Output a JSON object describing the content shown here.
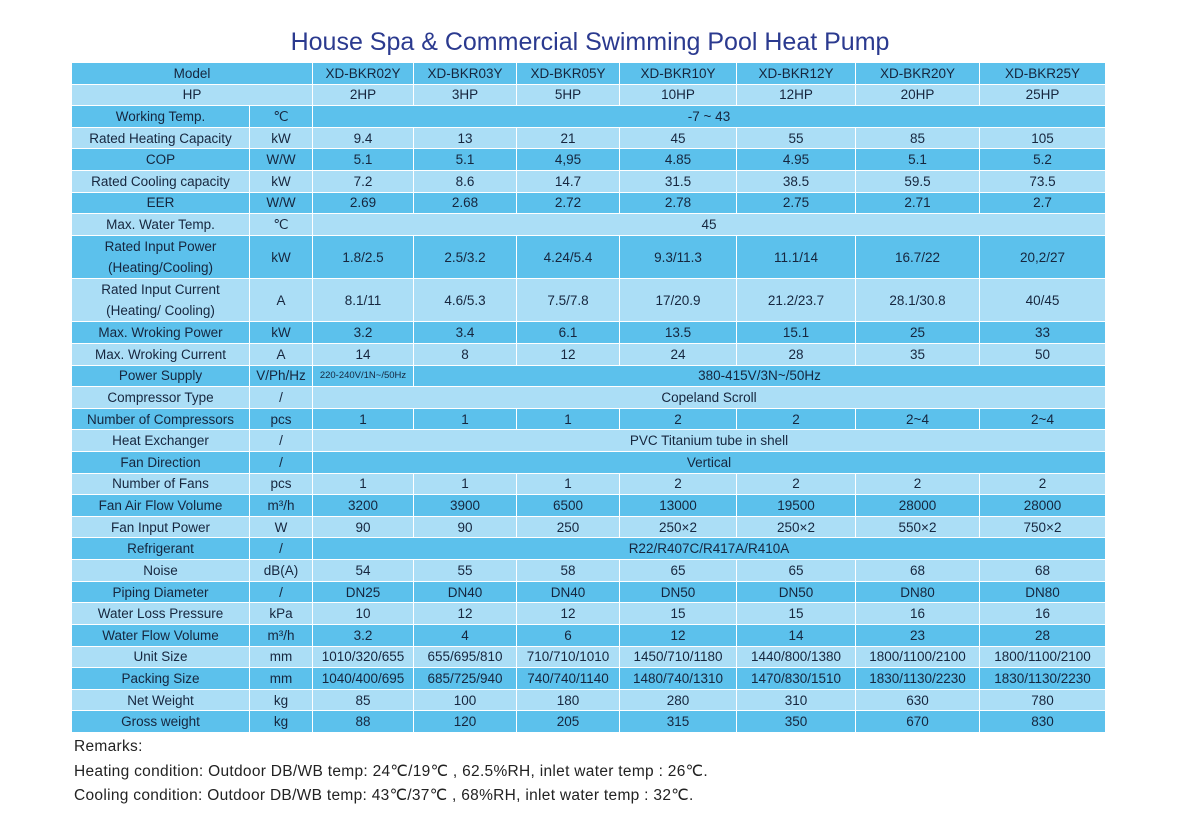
{
  "header": {
    "title": "House Spa & Commercial Swimming Pool Heat Pump"
  },
  "table": {
    "rows": [
      {
        "label": "Model",
        "values": [
          "XD-BKR02Y",
          "XD-BKR03Y",
          "XD-BKR05Y",
          "XD-BKR10Y",
          "XD-BKR12Y",
          "XD-BKR20Y",
          "XD-BKR25Y"
        ]
      },
      {
        "label": "HP",
        "values": [
          "2HP",
          "3HP",
          "5HP",
          "10HP",
          "12HP",
          "20HP",
          "25HP"
        ]
      },
      {
        "label": "Working Temp.",
        "unit": "℃",
        "values": [
          "-7 ~ 43"
        ]
      },
      {
        "label": "Rated Heating Capacity",
        "unit": "kW",
        "values": [
          "9.4",
          "13",
          "21",
          "45",
          "55",
          "85",
          "105"
        ]
      },
      {
        "label": "COP",
        "unit": "W/W",
        "values": [
          "5.1",
          "5.1",
          "4,95",
          "4.85",
          "4.95",
          "5.1",
          "5.2"
        ]
      },
      {
        "label": "Rated Cooling capacity",
        "unit": "kW",
        "values": [
          "7.2",
          "8.6",
          "14.7",
          "31.5",
          "38.5",
          "59.5",
          "73.5"
        ]
      },
      {
        "label": "EER",
        "unit": "W/W",
        "values": [
          "2.69",
          "2.68",
          "2.72",
          "2.78",
          "2.75",
          "2.71",
          "2.7"
        ]
      },
      {
        "label": "Max. Water Temp.",
        "unit": "℃",
        "values": [
          "45"
        ]
      },
      {
        "label": [
          "Rated Input Power",
          "(Heating/Cooling)"
        ],
        "unit": "kW",
        "values": [
          "1.8/2.5",
          "2.5/3.2",
          "4.24/5.4",
          "9.3/11.3",
          "11.1/14",
          "16.7/22",
          "20,2/27"
        ]
      },
      {
        "label": [
          "Rated Input Current",
          "(Heating/ Cooling)"
        ],
        "unit": "A",
        "values": [
          "8.1/11",
          "4.6/5.3",
          "7.5/7.8",
          "17/20.9",
          "21.2/23.7",
          "28.1/30.8",
          "40/45"
        ]
      },
      {
        "label": "Max. Wroking Power",
        "unit": "kW",
        "values": [
          "3.2",
          "3.4",
          "6.1",
          "13.5",
          "15.1",
          "25",
          "33"
        ]
      },
      {
        "label": "Max. Wroking Current",
        "unit": "A",
        "values": [
          "14",
          "8",
          "12",
          "24",
          "28",
          "35",
          "50"
        ]
      },
      {
        "label": "Power Supply",
        "unit": "V/Ph/Hz",
        "values": [
          "220-240V/1N~/50Hz",
          "380-415V/3N~/50Hz"
        ]
      },
      {
        "label": "Compressor Type",
        "unit": "/",
        "values": [
          "Copeland Scroll"
        ]
      },
      {
        "label": "Number of Compressors",
        "unit": "pcs",
        "values": [
          "1",
          "1",
          "1",
          "2",
          "2",
          "2~4",
          "2~4"
        ]
      },
      {
        "label": "Heat Exchanger",
        "unit": "/",
        "values": [
          "PVC  Titanium tube in shell"
        ]
      },
      {
        "label": "Fan Direction",
        "unit": "/",
        "values": [
          "Vertical"
        ]
      },
      {
        "label": "Number of Fans",
        "unit": "pcs",
        "values": [
          "1",
          "1",
          "1",
          "2",
          "2",
          "2",
          "2"
        ]
      },
      {
        "label": "Fan Air Flow Volume",
        "unit": "m³/h",
        "values": [
          "3200",
          "3900",
          "6500",
          "13000",
          "19500",
          "28000",
          "28000"
        ]
      },
      {
        "label": "Fan Input Power",
        "unit": "W",
        "values": [
          "90",
          "90",
          "250",
          "250×2",
          "250×2",
          "550×2",
          "750×2"
        ]
      },
      {
        "label": "Refrigerant",
        "unit": "/",
        "values": [
          "R22/R407C/R417A/R410A"
        ]
      },
      {
        "label": "Noise",
        "unit": "dB(A)",
        "values": [
          "54",
          "55",
          "58",
          "65",
          "65",
          "68",
          "68"
        ]
      },
      {
        "label": "Piping Diameter",
        "unit": "/",
        "values": [
          "DN25",
          "DN40",
          "DN40",
          "DN50",
          "DN50",
          "DN80",
          "DN80"
        ]
      },
      {
        "label": "Water Loss Pressure",
        "unit": "kPa",
        "values": [
          "10",
          "12",
          "12",
          "15",
          "15",
          "16",
          "16"
        ]
      },
      {
        "label": "Water Flow Volume",
        "unit": "m³/h",
        "values": [
          "3.2",
          "4",
          "6",
          "12",
          "14",
          "23",
          "28"
        ]
      },
      {
        "label": "Unit Size",
        "unit": "mm",
        "values": [
          "1010/320/655",
          "655/695/810",
          "710/710/1010",
          "1450/710/1180",
          "1440/800/1380",
          "1800/1100/2100",
          "1800/1100/2100"
        ]
      },
      {
        "label": "Packing Size",
        "unit": "mm",
        "values": [
          "1040/400/695",
          "685/725/940",
          "740/740/1140",
          "1480/740/1310",
          "1470/830/1510",
          "1830/1130/2230",
          "1830/1130/2230"
        ]
      },
      {
        "label": "Net Weight",
        "unit": "kg",
        "values": [
          "85",
          "100",
          "180",
          "280",
          "310",
          "630",
          "780"
        ]
      },
      {
        "label": "Gross weight",
        "unit": "kg",
        "values": [
          "88",
          "120",
          "205",
          "315",
          "350",
          "670",
          "830"
        ]
      }
    ]
  },
  "remarks": {
    "title": "Remarks:",
    "lines": [
      "Heating condition: Outdoor DB/WB temp: 24℃/19℃ , 62.5%RH, inlet water temp : 26℃.",
      "Cooling condition: Outdoor DB/WB temp: 43℃/37℃ , 68%RH, inlet water temp : 32℃."
    ]
  }
}
